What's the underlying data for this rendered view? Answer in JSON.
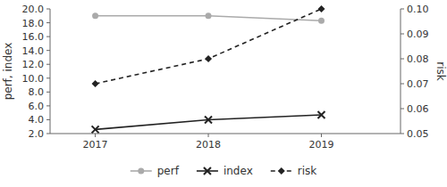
{
  "chart_data": {
    "type": "line",
    "x": [
      2017,
      2018,
      2019
    ],
    "xlim": [
      2016.6,
      2019.7
    ],
    "xticks": [
      2017,
      2018,
      2019
    ],
    "ylim": [
      2.0,
      20.0
    ],
    "yticks": [
      {
        "value": 2.0,
        "label": "2.0"
      },
      {
        "value": 4.0,
        "label": "4.0"
      },
      {
        "value": 6.0,
        "label": "6.0"
      },
      {
        "value": 8.0,
        "label": "8.0"
      },
      {
        "value": 10.0,
        "label": "10.0"
      },
      {
        "value": 12.0,
        "label": "12.0"
      },
      {
        "value": 14.0,
        "label": "14.0"
      },
      {
        "value": 16.0,
        "label": "16.0"
      },
      {
        "value": 18.0,
        "label": "18.0"
      },
      {
        "value": 20.0,
        "label": "20.0"
      }
    ],
    "y2lim": [
      0.05,
      0.1
    ],
    "y2ticks": [
      0.05,
      0.06,
      0.07,
      0.08,
      0.09,
      {
        "value": 0.1,
        "label": "0.10"
      }
    ],
    "y_label": "perf, index",
    "y2_label": "risk",
    "grid": false,
    "legend": "bottom",
    "series": [
      {
        "name": "perf",
        "color": "#aaaaaa",
        "marker": "circle",
        "line_style": "solid",
        "values": [
          19.0,
          19.0,
          18.3
        ]
      },
      {
        "name": "index",
        "color": "#222222",
        "marker": "x",
        "line_style": "solid",
        "values": [
          2.6,
          4.0,
          4.7
        ]
      },
      {
        "name": "risk",
        "color": "#222222",
        "marker": "diamond",
        "line_style": "dashed",
        "axis": "y2",
        "values": [
          0.07,
          0.08,
          0.1
        ]
      }
    ]
  }
}
